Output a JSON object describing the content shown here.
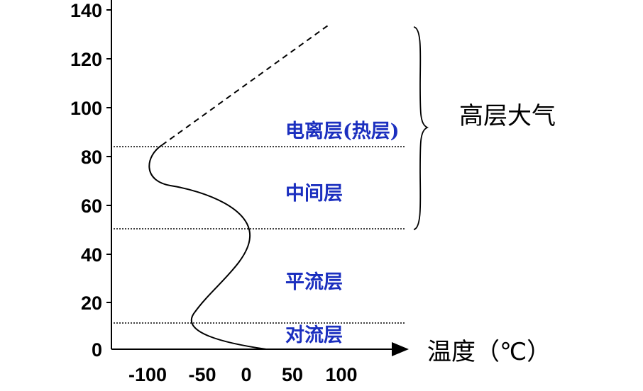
{
  "chart_data": {
    "type": "line",
    "y_ticks": [
      "140",
      "120",
      "100",
      "80",
      "60",
      "40",
      "20",
      "0"
    ],
    "x_ticks": [
      "-100",
      "-50",
      "0",
      "50",
      "100"
    ],
    "xlabel": "温度（℃）",
    "layers": {
      "thermosphere": "电离层(热层)",
      "mesosphere": "中间层",
      "stratosphere": "平流层",
      "troposphere": "对流层"
    },
    "bracket_label": "高层大气",
    "boundaries_km": [
      12,
      50,
      85
    ],
    "profile": [
      {
        "x": 25,
        "y": 0
      },
      {
        "x": -56,
        "y": 12
      },
      {
        "x": 0,
        "y": 50
      },
      {
        "x": -100,
        "y": 80
      },
      {
        "x": -87,
        "y": 85
      },
      {
        "x": 90,
        "y": 134
      }
    ]
  }
}
